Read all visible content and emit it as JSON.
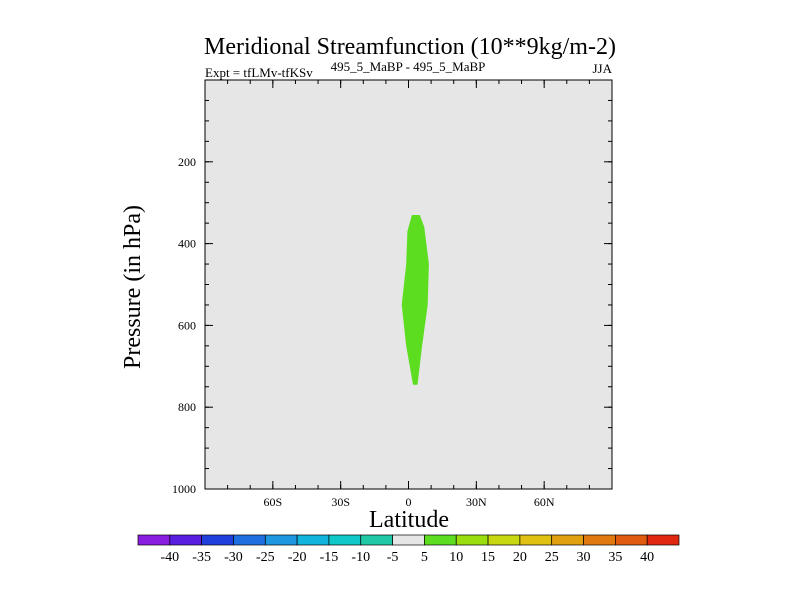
{
  "chart_data": {
    "type": "filled-contour",
    "title": "Meridional Streamfunction (10**9kg/m-2)",
    "left_label": "Expt = tfLMv-tfKSv",
    "center_label": "495_5_MaBP - 495_5_MaBP",
    "right_label": "JJA",
    "xlabel": "Latitude",
    "ylabel": "Pressure (in hPa)",
    "xlim": [
      -90,
      90
    ],
    "ylim": [
      0,
      1000
    ],
    "y_inverted": true,
    "x_ticks": [
      {
        "value": -60,
        "label": "60S"
      },
      {
        "value": -30,
        "label": "30S"
      },
      {
        "value": 0,
        "label": "0"
      },
      {
        "value": 30,
        "label": "30N"
      },
      {
        "value": 60,
        "label": "60N"
      }
    ],
    "y_ticks": [
      {
        "value": 200,
        "label": "200"
      },
      {
        "value": 400,
        "label": "400"
      },
      {
        "value": 600,
        "label": "600"
      },
      {
        "value": 800,
        "label": "800"
      },
      {
        "value": 1000,
        "label": "1000"
      }
    ],
    "background_level_color": "#e6e6e6",
    "regions": [
      {
        "level_range": [
          5,
          10
        ],
        "color": "#5ddd20",
        "outline_lat_p": [
          [
            1.5,
            330
          ],
          [
            5,
            330
          ],
          [
            7,
            360
          ],
          [
            9,
            450
          ],
          [
            8.5,
            550
          ],
          [
            6,
            650
          ],
          [
            4,
            745
          ],
          [
            2,
            745
          ],
          [
            -1,
            650
          ],
          [
            -3,
            550
          ],
          [
            -1,
            450
          ],
          [
            -0.5,
            370
          ],
          [
            1.5,
            330
          ]
        ]
      }
    ],
    "colorbar": {
      "labels": [
        "-40",
        "-35",
        "-30",
        "-25",
        "-20",
        "-15",
        "-10",
        "-5",
        "5",
        "10",
        "15",
        "20",
        "25",
        "30",
        "35",
        "40"
      ],
      "colors": [
        "#8a1ee0",
        "#5a1ee0",
        "#2040dd",
        "#1e6fe0",
        "#1e96e0",
        "#10b4dc",
        "#10c8c8",
        "#20c8a8",
        "#e6e6e6",
        "#5ddd20",
        "#9ade10",
        "#c8d810",
        "#e0c010",
        "#e0a010",
        "#e07a10",
        "#e05a10",
        "#e02810"
      ]
    }
  }
}
